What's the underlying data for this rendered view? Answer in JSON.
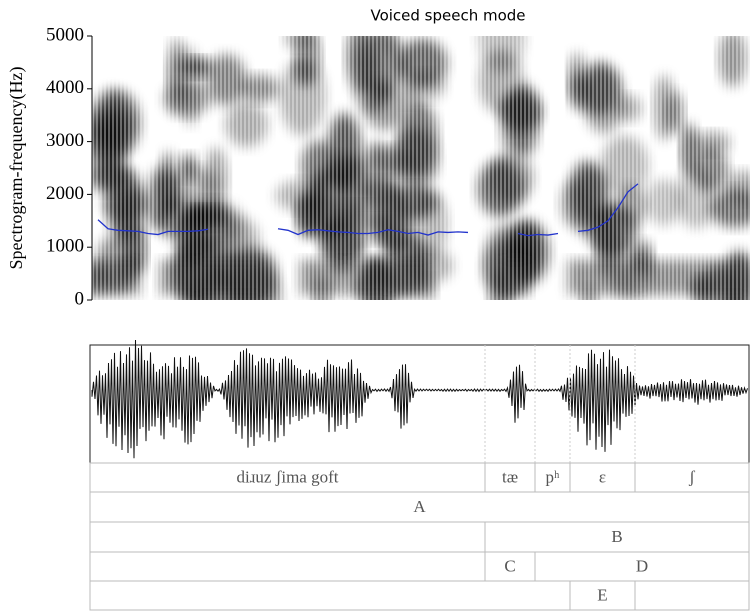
{
  "chart_data": {
    "type": "line",
    "title": "Voiced speech mode",
    "ylabel": "Spectrogram-frequency(Hz)",
    "ylim": [
      0,
      5000
    ],
    "yticks": [
      0,
      1000,
      2000,
      3000,
      4000,
      5000
    ],
    "series": [
      {
        "color": "#2233cc",
        "values": [
          1520,
          1350,
          1320,
          1310,
          1300,
          1260,
          1240,
          1300,
          1300,
          1300,
          1310,
          1340,
          null,
          null,
          null,
          null,
          null,
          null,
          1350,
          1320,
          1240,
          1320,
          1330,
          1310,
          1290,
          1280,
          1260,
          1260,
          1280,
          1330,
          1300,
          1260,
          1280,
          1230,
          1290,
          1280,
          1290,
          1280,
          null,
          null,
          null,
          null,
          1260,
          1220,
          1240,
          1230,
          1260,
          null,
          1300,
          1320,
          1380,
          1500,
          1750,
          2050,
          2200
        ]
      }
    ]
  },
  "tiers": [
    [
      "diɹuz ʃima goft",
      "tæ",
      "pʰ",
      "ɛ",
      "ʃ"
    ],
    [
      "A"
    ],
    [
      "B"
    ],
    [
      "C",
      "D"
    ],
    [
      "E"
    ]
  ]
}
